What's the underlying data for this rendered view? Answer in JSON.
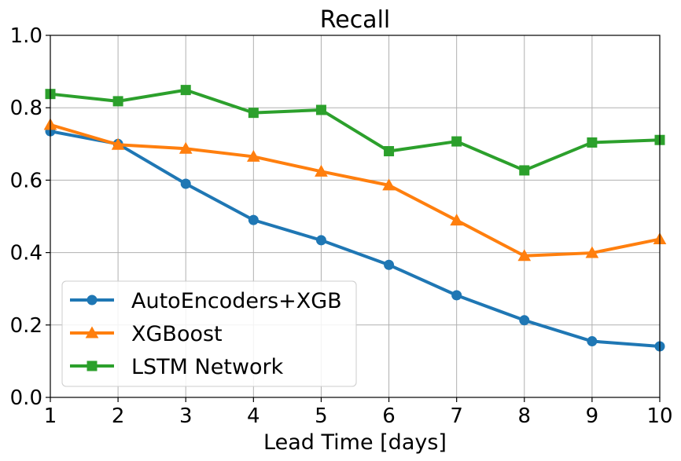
{
  "chart_data": {
    "type": "line",
    "title": "Recall",
    "xlabel": "Lead Time [days]",
    "ylabel": "",
    "xlim": [
      1,
      10
    ],
    "ylim": [
      0.0,
      1.0
    ],
    "grid": true,
    "legend_position": "lower-left",
    "x": [
      1,
      2,
      3,
      4,
      5,
      6,
      7,
      8,
      9,
      10
    ],
    "x_ticks": [
      "1",
      "2",
      "3",
      "4",
      "5",
      "6",
      "7",
      "8",
      "9",
      "10"
    ],
    "y_ticks_values": [
      0.0,
      0.2,
      0.4,
      0.6,
      0.8,
      1.0
    ],
    "y_ticks": [
      "0.0",
      "0.2",
      "0.4",
      "0.6",
      "0.8",
      "1.0"
    ],
    "series": [
      {
        "name": "AutoEncoders+XGB",
        "color": "#1f77b4",
        "marker": "circle",
        "values": [
          0.735,
          0.7,
          0.59,
          0.49,
          0.434,
          0.366,
          0.282,
          0.213,
          0.155,
          0.141
        ]
      },
      {
        "name": "XGBoost",
        "color": "#ff7f0e",
        "marker": "triangle",
        "values": [
          0.753,
          0.698,
          0.687,
          0.665,
          0.624,
          0.586,
          0.489,
          0.391,
          0.399,
          0.437
        ]
      },
      {
        "name": "LSTM Network",
        "color": "#2ca02c",
        "marker": "square",
        "values": [
          0.838,
          0.818,
          0.849,
          0.786,
          0.794,
          0.68,
          0.707,
          0.627,
          0.704,
          0.711
        ]
      }
    ]
  }
}
